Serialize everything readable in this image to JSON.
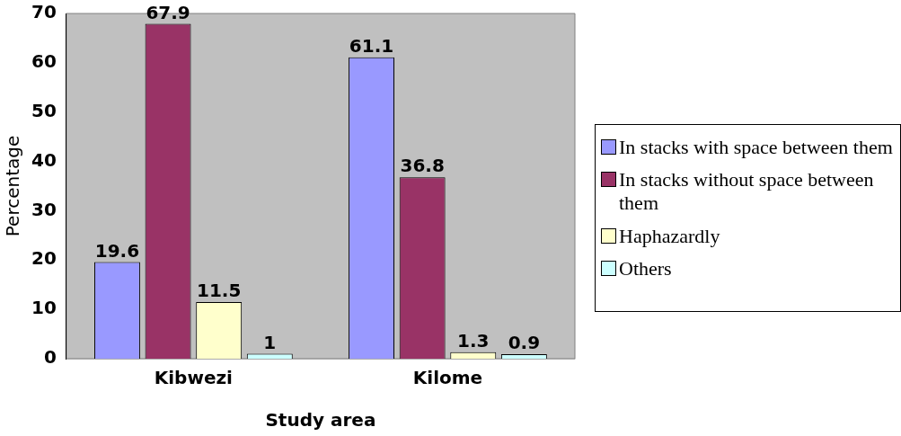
{
  "chart_data": {
    "type": "bar",
    "xlabel": "Study area",
    "ylabel": "Percentage",
    "categories": [
      "Kibwezi",
      "Kilome"
    ],
    "series": [
      {
        "name": "In stacks with space between them",
        "color": "#9999ff",
        "values": [
          19.6,
          61.1
        ]
      },
      {
        "name": "In stacks without space between them",
        "color": "#993366",
        "values": [
          67.9,
          36.8
        ]
      },
      {
        "name": "Haphazardly",
        "color": "#ffffcc",
        "values": [
          11.5,
          1.3
        ]
      },
      {
        "name": "Others",
        "color": "#ccffff",
        "values": [
          1,
          0.9
        ]
      }
    ],
    "ylim": [
      0,
      70
    ],
    "yticks": [
      0,
      10,
      20,
      30,
      40,
      50,
      60,
      70
    ],
    "grid": false,
    "legend": "right",
    "data_labels": true
  }
}
